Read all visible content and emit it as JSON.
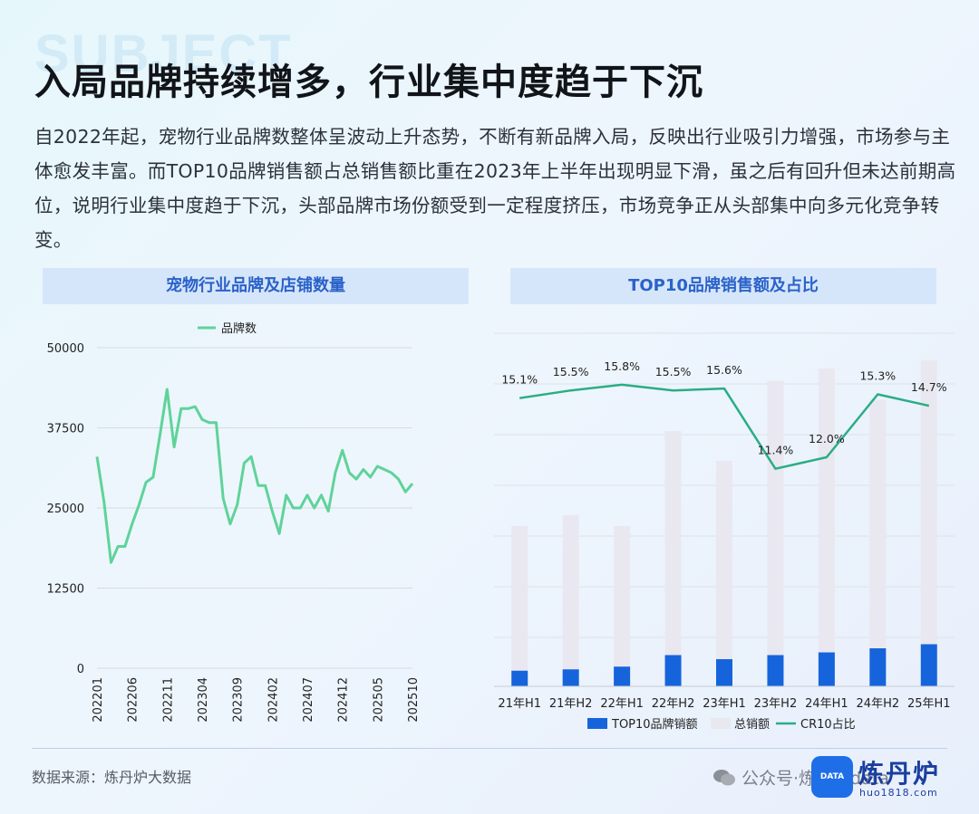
{
  "header": {
    "watermark": "SUBJECT",
    "title": "入局品牌持续增多，行业集中度趋于下沉",
    "paragraph": "自2022年起，宠物行业品牌数整体呈波动上升态势，不断有新品牌入局，反映出行业吸引力增强，市场参与主体愈发丰富。而TOP10品牌销售额占总销售额比重在2023年上半年出现明显下滑，虽之后有回升但未达前期高位，说明行业集中度趋于下沉，头部品牌市场份额受到一定程度挤压，市场竞争正从头部集中向多元化竞争转变。"
  },
  "footer": {
    "source": "数据来源：炼丹炉大数据",
    "wechat_text": "公众号·炼丹炉data",
    "logo_badge": "DATA",
    "logo_name": "炼丹炉",
    "logo_url": "huo1818.com"
  },
  "chart_data": [
    {
      "type": "line",
      "title": "宠物行业品牌及店铺数量",
      "legend_position": "top",
      "series": [
        {
          "name": "品牌数",
          "color": "#5fd39a",
          "values": [
            33000,
            26000,
            16500,
            19000,
            19000,
            22500,
            25500,
            29000,
            29800,
            36500,
            43500,
            34500,
            40500,
            40500,
            40800,
            38800,
            38300,
            38300,
            26500,
            22500,
            25500,
            32000,
            33000,
            28500,
            28500,
            24500,
            21000,
            27000,
            25000,
            25000,
            27000,
            25000,
            27000,
            24500,
            30500,
            34000,
            30500,
            29500,
            31000,
            29800,
            31500,
            31000,
            30500,
            29500,
            27500,
            28800
          ]
        }
      ],
      "x_start": "202201",
      "x_tick_labels": [
        "202201",
        "202206",
        "202211",
        "202304",
        "202309",
        "202402",
        "202407",
        "202412",
        "202505",
        "202510"
      ],
      "y_ticks": [
        "0",
        "12500",
        "25000",
        "37500",
        "50000"
      ],
      "ylim": [
        0,
        50000
      ],
      "grid": true
    },
    {
      "type": "bar",
      "title": "TOP10品牌销售额及占比",
      "categories": [
        "21年H1",
        "21年H2",
        "22年H1",
        "22年H2",
        "23年H1",
        "23年H2",
        "24年H1",
        "24年H2",
        "25年H1"
      ],
      "series": [
        {
          "name": "TOP10品牌销额",
          "color": "#1664dc",
          "values": [
            1.15,
            1.25,
            1.45,
            2.3,
            2.0,
            2.3,
            2.5,
            2.8,
            3.1
          ]
        },
        {
          "name": "总销额",
          "color": "#e9e8f0",
          "values": [
            11.8,
            12.6,
            11.8,
            18.8,
            16.6,
            22.5,
            23.4,
            21.1,
            24.0
          ]
        },
        {
          "name": "CR10占比",
          "color": "#2aad84",
          "values": [
            15.1,
            15.5,
            15.8,
            15.5,
            15.6,
            11.4,
            12.0,
            15.3,
            14.7
          ]
        }
      ],
      "cr10_labels": [
        "15.1%",
        "15.5%",
        "15.8%",
        "15.5%",
        "15.6%",
        "11.4%",
        "12.0%",
        "15.3%",
        "14.7%"
      ],
      "bar_ylim": [
        0,
        26
      ],
      "line_ylim": [
        0,
        18.5
      ],
      "grid": true,
      "legend_position": "bottom"
    }
  ]
}
